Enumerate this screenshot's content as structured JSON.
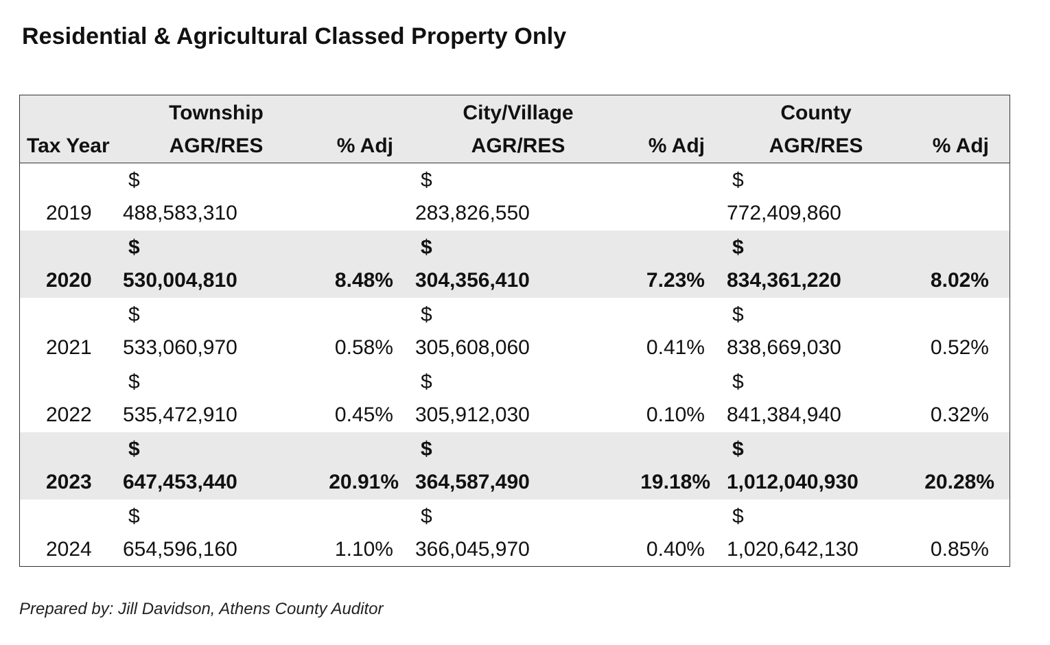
{
  "title": "Residential & Agricultural Classed Property Only",
  "table": {
    "headers": {
      "tax_year": "Tax Year",
      "township_top": "Township",
      "township_bottom": "AGR/RES",
      "township_adj": "% Adj",
      "city_top": "City/Village",
      "city_bottom": "AGR/RES",
      "city_adj": "% Adj",
      "county_top": "County",
      "county_bottom": "AGR/RES",
      "county_adj": "% Adj"
    },
    "currency_symbol": "$",
    "rows": [
      {
        "year": "2019",
        "township": "488,583,310",
        "township_adj": "",
        "city": "283,826,550",
        "city_adj": "",
        "county": "772,409,860",
        "county_adj": ""
      },
      {
        "year": "2020",
        "township": "530,004,810",
        "township_adj": "8.48%",
        "city": "304,356,410",
        "city_adj": "7.23%",
        "county": "834,361,220",
        "county_adj": "8.02%"
      },
      {
        "year": "2021",
        "township": "533,060,970",
        "township_adj": "0.58%",
        "city": "305,608,060",
        "city_adj": "0.41%",
        "county": "838,669,030",
        "county_adj": "0.52%"
      },
      {
        "year": "2022",
        "township": "535,472,910",
        "township_adj": "0.45%",
        "city": "305,912,030",
        "city_adj": "0.10%",
        "county": "841,384,940",
        "county_adj": "0.32%"
      },
      {
        "year": "2023",
        "township": "647,453,440",
        "township_adj": "20.91%",
        "city": "364,587,490",
        "city_adj": "19.18%",
        "county": "1,012,040,930",
        "county_adj": "20.28%"
      },
      {
        "year": "2024",
        "township": "654,596,160",
        "township_adj": "1.10%",
        "city": "366,045,970",
        "city_adj": "0.40%",
        "county": "1,020,642,130",
        "county_adj": "0.85%"
      }
    ]
  },
  "footer": "Prepared by: Jill Davidson, Athens County Auditor"
}
